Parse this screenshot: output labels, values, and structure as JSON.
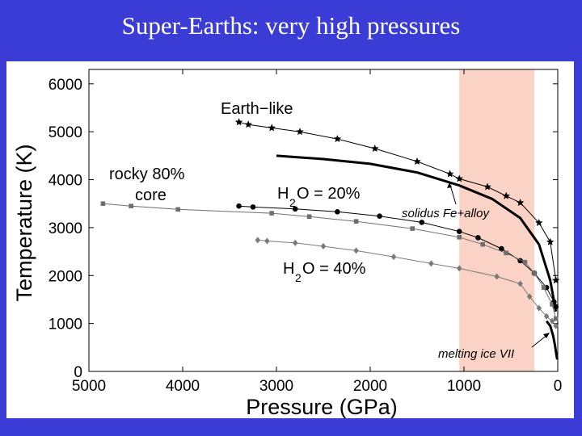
{
  "slide": {
    "title": "Super-Earths:  very high pressures"
  },
  "chart_data": {
    "type": "line",
    "title": "",
    "xlabel": "Pressure (GPa)",
    "ylabel": "Temperature (K)",
    "xlim": [
      5000,
      0
    ],
    "ylim": [
      0,
      6300
    ],
    "x_ticks": [
      "5000",
      "4000",
      "3000",
      "2000",
      "1000",
      "0"
    ],
    "y_ticks": [
      "0",
      "1000",
      "2000",
      "3000",
      "4000",
      "5000",
      "6000"
    ],
    "x_tick_values": [
      5000,
      4000,
      3000,
      2000,
      1000,
      0
    ],
    "y_tick_values": [
      0,
      1000,
      2000,
      3000,
      4000,
      5000,
      6000
    ],
    "highlight_band": {
      "x_range": [
        1050,
        250
      ],
      "color": "#fbd3c6"
    },
    "series": [
      {
        "name": "Earth-like",
        "marker": "star",
        "color": "#000000",
        "x": [
          3400,
          3300,
          3050,
          2750,
          2350,
          1950,
          1500,
          1150,
          1050,
          750,
          550,
          400,
          200,
          80,
          20
        ],
        "y": [
          5200,
          5150,
          5080,
          5000,
          4850,
          4650,
          4380,
          4120,
          4020,
          3850,
          3660,
          3520,
          3100,
          2700,
          1900
        ]
      },
      {
        "name": "H2O = 20%",
        "marker": "circle",
        "color": "#000000",
        "x": [
          3400,
          3250,
          2800,
          2350,
          1900,
          1450,
          1050,
          850,
          600,
          400,
          250,
          120,
          40,
          20
        ],
        "y": [
          3450,
          3430,
          3390,
          3330,
          3240,
          3110,
          2920,
          2790,
          2560,
          2310,
          2050,
          1750,
          1450,
          1350
        ]
      },
      {
        "name": "rocky 80% core",
        "marker": "square",
        "color": "#6e6e6e",
        "x": [
          4850,
          4550,
          4050,
          3050,
          2650,
          2150,
          1550,
          1050,
          800,
          550,
          350,
          250,
          150,
          60,
          20
        ],
        "y": [
          3500,
          3450,
          3380,
          3300,
          3230,
          3130,
          2980,
          2800,
          2650,
          2470,
          2280,
          2050,
          1750,
          1400,
          1100
        ]
      },
      {
        "name": "H2O = 40%",
        "marker": "diamond",
        "color": "#7a7a7a",
        "x": [
          3200,
          3100,
          2800,
          2500,
          2150,
          1750,
          1350,
          1050,
          650,
          400,
          300,
          200,
          120,
          60,
          20
        ],
        "y": [
          2740,
          2720,
          2680,
          2610,
          2520,
          2390,
          2250,
          2150,
          1980,
          1830,
          1560,
          1320,
          1150,
          1050,
          950
        ]
      },
      {
        "name": "solidus Fe+alloy",
        "marker": "none",
        "color": "#000000",
        "x": [
          3000,
          2500,
          2000,
          1500,
          1050,
          700,
          400,
          200,
          80,
          20
        ],
        "y": [
          4500,
          4430,
          4330,
          4150,
          3880,
          3600,
          3200,
          2650,
          1900,
          1250
        ]
      },
      {
        "name": "melting ice VII",
        "marker": "none",
        "color": "#000000",
        "x": [
          120,
          80,
          50,
          30,
          15,
          5
        ],
        "y": [
          1050,
          950,
          750,
          550,
          350,
          250
        ]
      }
    ],
    "annotations": {
      "earth_like": "Earth−like",
      "rocky_line1": "rocky 80%",
      "rocky_line2": "core",
      "h2o20_main": "H",
      "h2o20_sub": "2",
      "h2o20_rest": "O = 20%",
      "h2o40_main": "H",
      "h2o40_sub": "2",
      "h2o40_rest": "O = 40%",
      "solidus": "solidus Fe+alloy",
      "melting": "melting ice VII"
    }
  }
}
